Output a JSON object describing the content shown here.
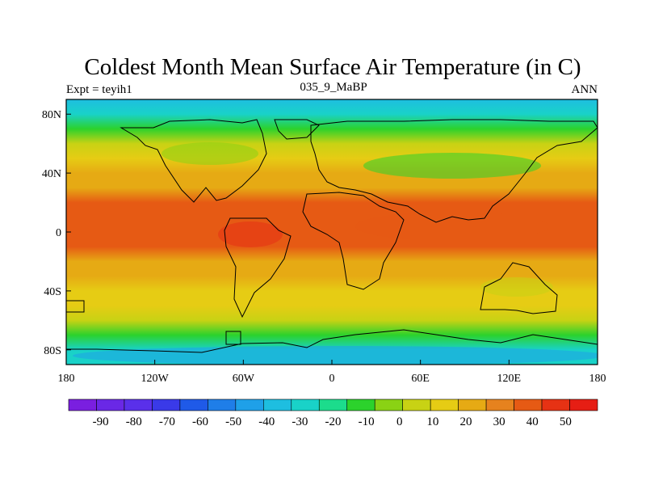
{
  "title": "Coldest Month Mean Surface Air Temperature (in C)",
  "left_label": "Expt = teyih1",
  "center_label": "035_9_MaBP",
  "right_label": "ANN",
  "map": {
    "projection": "cylindrical-equidistant",
    "lon_range": [
      -180,
      180
    ],
    "lat_range": [
      -90,
      90
    ],
    "x_ticks": [
      {
        "lon": -180,
        "label": "180"
      },
      {
        "lon": -120,
        "label": "120W"
      },
      {
        "lon": -60,
        "label": "60W"
      },
      {
        "lon": 0,
        "label": "0"
      },
      {
        "lon": 60,
        "label": "60E"
      },
      {
        "lon": 120,
        "label": "120E"
      },
      {
        "lon": 180,
        "label": "180"
      }
    ],
    "y_ticks": [
      {
        "lat": 80,
        "label": "80N"
      },
      {
        "lat": 40,
        "label": "40N"
      },
      {
        "lat": 0,
        "label": "0"
      },
      {
        "lat": -40,
        "label": "40S"
      },
      {
        "lat": -80,
        "label": "80S"
      }
    ],
    "zonal_temperature_profile_c": [
      {
        "lat": 90,
        "t": -32
      },
      {
        "lat": 80,
        "t": -28
      },
      {
        "lat": 70,
        "t": -12
      },
      {
        "lat": 60,
        "t": 5
      },
      {
        "lat": 50,
        "t": 16
      },
      {
        "lat": 40,
        "t": 22
      },
      {
        "lat": 30,
        "t": 27
      },
      {
        "lat": 20,
        "t": 33
      },
      {
        "lat": 10,
        "t": 37
      },
      {
        "lat": 0,
        "t": 36
      },
      {
        "lat": -10,
        "t": 32
      },
      {
        "lat": -20,
        "t": 27
      },
      {
        "lat": -30,
        "t": 22
      },
      {
        "lat": -40,
        "t": 17
      },
      {
        "lat": -50,
        "t": 10
      },
      {
        "lat": -60,
        "t": 0
      },
      {
        "lat": -70,
        "t": -12
      },
      {
        "lat": -80,
        "t": -25
      },
      {
        "lat": -90,
        "t": -30
      }
    ]
  },
  "colorbar": {
    "levels": [
      -90,
      -80,
      -70,
      -60,
      -50,
      -40,
      -30,
      -20,
      -10,
      0,
      10,
      20,
      30,
      40,
      50
    ],
    "labels": [
      "-90",
      "-80",
      "-70",
      "-60",
      "-50",
      "-40",
      "-30",
      "-20",
      "-10",
      "0",
      "10",
      "20",
      "30",
      "40",
      "50"
    ],
    "colors": [
      "#7a1fe0",
      "#6a28e6",
      "#5a30ea",
      "#3a3ae8",
      "#1f5ae8",
      "#1f7ee8",
      "#1fa0e8",
      "#1ebee0",
      "#19d2c8",
      "#1cdc8c",
      "#2cd22c",
      "#8ad214",
      "#c8d214",
      "#e6cc14",
      "#e6aa14",
      "#e6821e",
      "#e65a14",
      "#e63214",
      "#e61e14"
    ]
  }
}
